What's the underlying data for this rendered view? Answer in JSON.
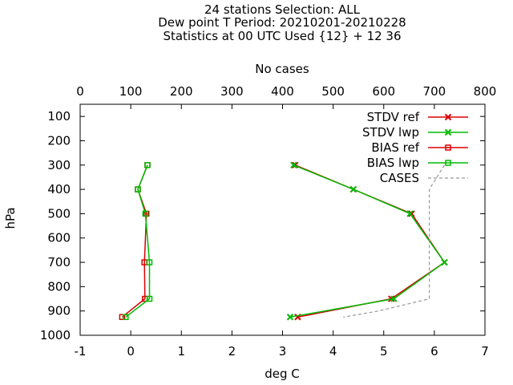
{
  "chart_data": {
    "type": "line",
    "title_lines": [
      "24 stations Selection: ALL",
      "Dew point T  Period: 20210201-20210228",
      "Statistics at 00 UTC  Used {12} + 12 36"
    ],
    "xlabel": "deg C",
    "ylabel": "hPa",
    "x2label": "No cases",
    "xlim": [
      -1,
      7
    ],
    "x2lim": [
      0,
      800
    ],
    "ylim": [
      1000,
      50
    ],
    "y_inverted": true,
    "xticks": [
      "-1",
      "0",
      "1",
      "2",
      "3",
      "4",
      "5",
      "6",
      "7"
    ],
    "x2ticks": [
      "0",
      "100",
      "200",
      "300",
      "400",
      "500",
      "600",
      "700",
      "800"
    ],
    "yticks": [
      "100",
      "200",
      "300",
      "400",
      "500",
      "600",
      "700",
      "800",
      "900",
      "1000"
    ],
    "legend_position": "top-right",
    "series": [
      {
        "name": "STDV ref",
        "color": "#dd0000",
        "marker": "x",
        "points": [
          [
            3.25,
            300
          ],
          [
            4.4,
            400
          ],
          [
            5.55,
            500
          ],
          [
            6.2,
            700
          ],
          [
            5.15,
            850
          ],
          [
            3.3,
            925
          ]
        ]
      },
      {
        "name": "STDV lwp",
        "color": "#00bb00",
        "marker": "x",
        "points": [
          [
            3.22,
            300
          ],
          [
            4.4,
            400
          ],
          [
            5.52,
            500
          ],
          [
            6.2,
            700
          ],
          [
            5.2,
            850
          ],
          [
            3.15,
            925
          ]
        ]
      },
      {
        "name": "BIAS ref",
        "color": "#dd0000",
        "marker": "square",
        "points": [
          [
            0.33,
            300
          ],
          [
            0.14,
            400
          ],
          [
            0.31,
            500
          ],
          [
            0.27,
            700
          ],
          [
            0.28,
            850
          ],
          [
            -0.17,
            925
          ]
        ]
      },
      {
        "name": "BIAS lwp",
        "color": "#00bb00",
        "marker": "square",
        "points": [
          [
            0.33,
            300
          ],
          [
            0.14,
            400
          ],
          [
            0.29,
            500
          ],
          [
            0.37,
            700
          ],
          [
            0.37,
            850
          ],
          [
            -0.1,
            925
          ]
        ]
      },
      {
        "name": "CASES",
        "color": "#999999",
        "marker": "none",
        "dashed": true,
        "axis": "x2",
        "points": [
          [
            720,
            300
          ],
          [
            705,
            350
          ],
          [
            690,
            400
          ],
          [
            690,
            500
          ],
          [
            690,
            700
          ],
          [
            690,
            850
          ],
          [
            590,
            900
          ],
          [
            520,
            925
          ]
        ]
      }
    ]
  }
}
